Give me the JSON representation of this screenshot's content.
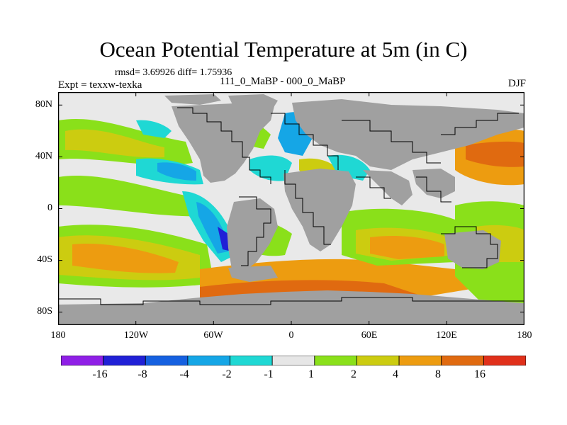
{
  "title": "Ocean Potential Temperature at 5m (in C)",
  "stats": "rmsd= 3.69926 diff= 1.75936",
  "expt": "Expt = texxw-texka",
  "subtitle": "111_0_MaBP - 000_0_MaBP",
  "season": "DJF",
  "y_ticks": [
    "80N",
    "40N",
    "0",
    "40S",
    "80S"
  ],
  "x_ticks": [
    "180",
    "120W",
    "60W",
    "0",
    "60E",
    "120E",
    "180"
  ],
  "colorbar": {
    "labels": [
      "-16",
      "-8",
      "-4",
      "-2",
      "-1",
      "1",
      "2",
      "4",
      "8",
      "16"
    ],
    "colors": [
      "#8f1fe6",
      "#2020d6",
      "#1560e0",
      "#15a6e6",
      "#1fd8d4",
      "#e6e6e6",
      "#8ae01a",
      "#cccc10",
      "#ed9c10",
      "#e06a10",
      "#e0301a"
    ]
  },
  "colors": {
    "land": "#a0a0a0",
    "ocean_base": "#e9e9e9"
  }
}
